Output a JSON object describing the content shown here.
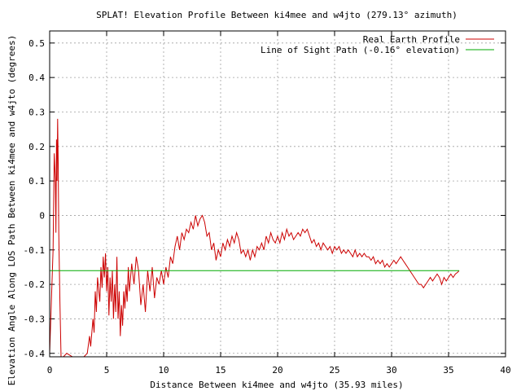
{
  "chart_data": {
    "type": "line",
    "title": "SPLAT! Elevation Profile Between ki4mee and w4jto (279.13° azimuth)",
    "xlabel": "Distance Between ki4mee and w4jto (35.93 miles)",
    "ylabel": "Elevation Angle Along LOS Path Between ki4mee and w4jto (degrees)",
    "xlim": [
      0,
      40
    ],
    "ylim": [
      -0.41,
      0.535
    ],
    "x_ticks": [
      0,
      5,
      10,
      15,
      20,
      25,
      30,
      35,
      40
    ],
    "x_tick_labels": [
      "0",
      "5",
      "10",
      "15",
      "20",
      "25",
      "30",
      "35",
      "40"
    ],
    "y_ticks": [
      -0.4,
      -0.3,
      -0.2,
      -0.1,
      0,
      0.1,
      0.2,
      0.3,
      0.4,
      0.5
    ],
    "y_tick_labels": [
      "-0.4",
      "-0.3",
      "-0.2",
      "-0.1",
      "0",
      "0.1",
      "0.2",
      "0.3",
      "0.4",
      "0.5"
    ],
    "grid": true,
    "legend_position": "top-right",
    "series": [
      {
        "name": "Real Earth Profile",
        "color": "#cc0000",
        "points": [
          [
            0.0,
            -0.4
          ],
          [
            0.3,
            -0.1
          ],
          [
            0.4,
            0.18
          ],
          [
            0.5,
            0.1
          ],
          [
            0.55,
            -0.05
          ],
          [
            0.6,
            0.22
          ],
          [
            0.65,
            0.1
          ],
          [
            0.7,
            0.28
          ],
          [
            0.75,
            0.15
          ],
          [
            0.8,
            -0.05
          ],
          [
            0.9,
            -0.25
          ],
          [
            1.0,
            -0.41
          ],
          [
            1.2,
            -0.41
          ],
          [
            1.5,
            -0.4
          ],
          [
            2.0,
            -0.41
          ],
          [
            2.5,
            -0.41
          ],
          [
            3.0,
            -0.41
          ],
          [
            3.3,
            -0.4
          ],
          [
            3.5,
            -0.35
          ],
          [
            3.6,
            -0.38
          ],
          [
            3.8,
            -0.3
          ],
          [
            3.9,
            -0.34
          ],
          [
            4.0,
            -0.22
          ],
          [
            4.1,
            -0.28
          ],
          [
            4.2,
            -0.18
          ],
          [
            4.4,
            -0.25
          ],
          [
            4.5,
            -0.15
          ],
          [
            4.6,
            -0.21
          ],
          [
            4.7,
            -0.12
          ],
          [
            4.8,
            -0.18
          ],
          [
            4.9,
            -0.11
          ],
          [
            5.0,
            -0.22
          ],
          [
            5.1,
            -0.15
          ],
          [
            5.2,
            -0.29
          ],
          [
            5.3,
            -0.18
          ],
          [
            5.4,
            -0.25
          ],
          [
            5.5,
            -0.16
          ],
          [
            5.6,
            -0.3
          ],
          [
            5.7,
            -0.2
          ],
          [
            5.8,
            -0.28
          ],
          [
            5.9,
            -0.12
          ],
          [
            6.0,
            -0.3
          ],
          [
            6.1,
            -0.22
          ],
          [
            6.2,
            -0.35
          ],
          [
            6.3,
            -0.26
          ],
          [
            6.4,
            -0.32
          ],
          [
            6.5,
            -0.22
          ],
          [
            6.6,
            -0.27
          ],
          [
            6.7,
            -0.2
          ],
          [
            6.8,
            -0.25
          ],
          [
            6.9,
            -0.15
          ],
          [
            7.0,
            -0.22
          ],
          [
            7.2,
            -0.14
          ],
          [
            7.4,
            -0.2
          ],
          [
            7.6,
            -0.12
          ],
          [
            7.8,
            -0.16
          ],
          [
            8.0,
            -0.26
          ],
          [
            8.2,
            -0.2
          ],
          [
            8.4,
            -0.28
          ],
          [
            8.6,
            -0.16
          ],
          [
            8.8,
            -0.22
          ],
          [
            9.0,
            -0.15
          ],
          [
            9.2,
            -0.24
          ],
          [
            9.4,
            -0.18
          ],
          [
            9.6,
            -0.2
          ],
          [
            9.8,
            -0.16
          ],
          [
            10.0,
            -0.2
          ],
          [
            10.2,
            -0.15
          ],
          [
            10.4,
            -0.18
          ],
          [
            10.6,
            -0.12
          ],
          [
            10.8,
            -0.14
          ],
          [
            11.0,
            -0.09
          ],
          [
            11.2,
            -0.06
          ],
          [
            11.4,
            -0.1
          ],
          [
            11.6,
            -0.05
          ],
          [
            11.8,
            -0.07
          ],
          [
            12.0,
            -0.04
          ],
          [
            12.2,
            -0.05
          ],
          [
            12.4,
            -0.02
          ],
          [
            12.6,
            -0.04
          ],
          [
            12.8,
            0.0
          ],
          [
            13.0,
            -0.03
          ],
          [
            13.2,
            -0.01
          ],
          [
            13.4,
            0.0
          ],
          [
            13.6,
            -0.02
          ],
          [
            13.8,
            -0.06
          ],
          [
            14.0,
            -0.05
          ],
          [
            14.2,
            -0.1
          ],
          [
            14.4,
            -0.08
          ],
          [
            14.6,
            -0.13
          ],
          [
            14.8,
            -0.1
          ],
          [
            15.0,
            -0.12
          ],
          [
            15.2,
            -0.08
          ],
          [
            15.4,
            -0.1
          ],
          [
            15.6,
            -0.07
          ],
          [
            15.8,
            -0.09
          ],
          [
            16.0,
            -0.06
          ],
          [
            16.2,
            -0.08
          ],
          [
            16.4,
            -0.05
          ],
          [
            16.6,
            -0.07
          ],
          [
            16.8,
            -0.11
          ],
          [
            17.0,
            -0.1
          ],
          [
            17.2,
            -0.12
          ],
          [
            17.4,
            -0.1
          ],
          [
            17.6,
            -0.13
          ],
          [
            17.8,
            -0.1
          ],
          [
            18.0,
            -0.12
          ],
          [
            18.2,
            -0.09
          ],
          [
            18.4,
            -0.1
          ],
          [
            18.6,
            -0.08
          ],
          [
            18.8,
            -0.1
          ],
          [
            19.0,
            -0.06
          ],
          [
            19.2,
            -0.08
          ],
          [
            19.4,
            -0.05
          ],
          [
            19.6,
            -0.07
          ],
          [
            19.8,
            -0.08
          ],
          [
            20.0,
            -0.06
          ],
          [
            20.2,
            -0.08
          ],
          [
            20.4,
            -0.05
          ],
          [
            20.6,
            -0.07
          ],
          [
            20.8,
            -0.04
          ],
          [
            21.0,
            -0.06
          ],
          [
            21.2,
            -0.05
          ],
          [
            21.4,
            -0.07
          ],
          [
            21.6,
            -0.06
          ],
          [
            21.8,
            -0.05
          ],
          [
            22.0,
            -0.06
          ],
          [
            22.2,
            -0.04
          ],
          [
            22.4,
            -0.05
          ],
          [
            22.6,
            -0.04
          ],
          [
            22.8,
            -0.06
          ],
          [
            23.0,
            -0.08
          ],
          [
            23.2,
            -0.07
          ],
          [
            23.4,
            -0.09
          ],
          [
            23.6,
            -0.08
          ],
          [
            23.8,
            -0.1
          ],
          [
            24.0,
            -0.08
          ],
          [
            24.2,
            -0.09
          ],
          [
            24.4,
            -0.1
          ],
          [
            24.6,
            -0.09
          ],
          [
            24.8,
            -0.11
          ],
          [
            25.0,
            -0.09
          ],
          [
            25.2,
            -0.1
          ],
          [
            25.4,
            -0.09
          ],
          [
            25.6,
            -0.11
          ],
          [
            25.8,
            -0.1
          ],
          [
            26.0,
            -0.11
          ],
          [
            26.2,
            -0.1
          ],
          [
            26.4,
            -0.11
          ],
          [
            26.6,
            -0.12
          ],
          [
            26.8,
            -0.1
          ],
          [
            27.0,
            -0.12
          ],
          [
            27.2,
            -0.11
          ],
          [
            27.4,
            -0.12
          ],
          [
            27.6,
            -0.11
          ],
          [
            27.8,
            -0.12
          ],
          [
            28.0,
            -0.12
          ],
          [
            28.2,
            -0.13
          ],
          [
            28.4,
            -0.12
          ],
          [
            28.6,
            -0.14
          ],
          [
            28.8,
            -0.13
          ],
          [
            29.0,
            -0.14
          ],
          [
            29.2,
            -0.13
          ],
          [
            29.4,
            -0.15
          ],
          [
            29.6,
            -0.14
          ],
          [
            29.8,
            -0.15
          ],
          [
            30.0,
            -0.14
          ],
          [
            30.2,
            -0.13
          ],
          [
            30.4,
            -0.14
          ],
          [
            30.6,
            -0.13
          ],
          [
            30.8,
            -0.12
          ],
          [
            31.0,
            -0.13
          ],
          [
            31.2,
            -0.14
          ],
          [
            31.4,
            -0.15
          ],
          [
            31.6,
            -0.16
          ],
          [
            31.8,
            -0.17
          ],
          [
            32.0,
            -0.18
          ],
          [
            32.2,
            -0.19
          ],
          [
            32.4,
            -0.2
          ],
          [
            32.6,
            -0.2
          ],
          [
            32.8,
            -0.21
          ],
          [
            33.0,
            -0.2
          ],
          [
            33.2,
            -0.19
          ],
          [
            33.4,
            -0.18
          ],
          [
            33.6,
            -0.19
          ],
          [
            33.8,
            -0.18
          ],
          [
            34.0,
            -0.17
          ],
          [
            34.2,
            -0.18
          ],
          [
            34.4,
            -0.2
          ],
          [
            34.6,
            -0.18
          ],
          [
            34.8,
            -0.19
          ],
          [
            35.0,
            -0.18
          ],
          [
            35.2,
            -0.17
          ],
          [
            35.4,
            -0.18
          ],
          [
            35.6,
            -0.17
          ],
          [
            35.8,
            -0.165
          ],
          [
            35.93,
            -0.16
          ]
        ]
      },
      {
        "name": "Line of Sight Path (-0.16° elevation)",
        "color": "#00aa00",
        "points": [
          [
            0,
            -0.16
          ],
          [
            35.93,
            -0.16
          ]
        ]
      }
    ]
  }
}
